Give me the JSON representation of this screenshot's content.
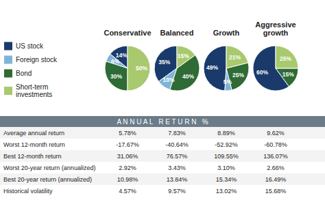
{
  "chart_data": [
    {
      "type": "pie",
      "title": "Conservative",
      "categories": [
        "US stock",
        "Foreign stock",
        "Bond",
        "Short-term\ninvestments"
      ],
      "values": [
        14,
        6,
        30,
        50
      ],
      "value_labels": [
        "14%",
        "6%",
        "30%",
        "50%"
      ],
      "colors": [
        "#1a3a6b",
        "#7eb5d6",
        "#2e6b35",
        "#a8c96e"
      ],
      "data_labels": true,
      "legend": "left"
    },
    {
      "type": "pie",
      "title": "Balanced",
      "categories": [
        "US stock",
        "Foreign stock",
        "Bond",
        "Short-term\ninvestments"
      ],
      "values": [
        35,
        10,
        40,
        15
      ],
      "value_labels": [
        "35%",
        "10%",
        "40%",
        "15%"
      ],
      "colors": [
        "#1a3a6b",
        "#7eb5d6",
        "#2e6b35",
        "#a8c96e"
      ],
      "data_labels": true
    },
    {
      "type": "pie",
      "title": "Growth",
      "categories": [
        "US stock",
        "Foreign stock",
        "Bond",
        "Short-term\ninvestments"
      ],
      "values": [
        49,
        5,
        25,
        21
      ],
      "value_labels": [
        "49%",
        "5%",
        "25%",
        "21%"
      ],
      "colors": [
        "#1a3a6b",
        "#7eb5d6",
        "#2e6b35",
        "#a8c96e"
      ],
      "data_labels": true
    },
    {
      "type": "pie",
      "title": "Aggressive\ngrowth",
      "categories": [
        "US stock",
        "Foreign stock",
        "Bond",
        "Short-term\ninvestments"
      ],
      "values": [
        60,
        0,
        15,
        25
      ],
      "value_labels": [
        "60%",
        null,
        "15%",
        "25%"
      ],
      "colors": [
        "#1a3a6b",
        "#7eb5d6",
        "#2e6b35",
        "#a8c96e"
      ],
      "data_labels": true
    },
    {
      "type": "table",
      "title": "A N N U A L   R E T U R N   %",
      "categories": [
        "Average annual return",
        "Worst 12-month return",
        "Best 12-month return",
        "Worst 20-year return (annualized)",
        "Best 20-year return (annualized)",
        "Historical volatility"
      ],
      "series": [
        {
          "values": [
            5.78,
            -17.67,
            31.06,
            2.92,
            10.98,
            4.57
          ],
          "value_labels": [
            "5.78%",
            "-17.67%",
            "31.06%",
            "2.92%",
            "10.98%",
            "4.57%"
          ]
        },
        {
          "values": [
            7.83,
            -40.64,
            76.57,
            3.43,
            13.84,
            9.57
          ],
          "value_labels": [
            "7.83%",
            "-40.64%",
            "76.57%",
            "3.43%",
            "13.84%",
            "9.57%"
          ]
        },
        {
          "values": [
            8.89,
            -52.92,
            109.55,
            3.1,
            15.34,
            13.02
          ],
          "value_labels": [
            "8.89%",
            "-52.92%",
            "109.55%",
            "3.10%",
            "15.34%",
            "13.02%"
          ]
        },
        {
          "values": [
            9.62,
            -60.78,
            136.07,
            2.66,
            16.49,
            15.68
          ],
          "value_labels": [
            "9.62%",
            "-60.78%",
            "136.07%",
            "2.66%",
            "16.49%",
            "15.68%"
          ]
        }
      ],
      "data_labels": true
    }
  ]
}
